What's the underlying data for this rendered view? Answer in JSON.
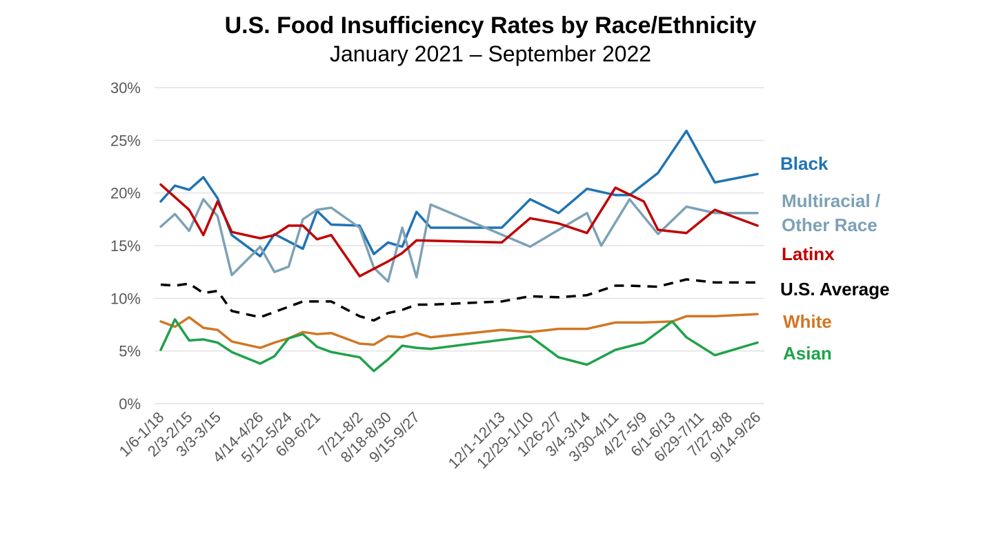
{
  "chart_data": {
    "type": "line",
    "title": "U.S. Food Insufficiency Rates by Race/Ethnicity",
    "subtitle": "January 2021 – September 2022",
    "ylim": [
      0,
      30
    ],
    "yticks": [
      0,
      5,
      10,
      15,
      20,
      25,
      30
    ],
    "ytick_labels": [
      "0%",
      "5%",
      "10%",
      "15%",
      "20%",
      "25%",
      "30%"
    ],
    "grid": true,
    "x_tick_labels": [
      "1/6-1/18",
      "2/3-2/15",
      "3/3-3/15",
      "4/14-4/26",
      "5/12-5/24",
      "6/9-6/21",
      "7/21-8/2",
      "8/18-8/30",
      "9/15-9/27",
      "12/1-12/13",
      "12/29-1/10",
      "1/26-2/7",
      "3/4-3/14",
      "3/30-4/11",
      "4/27-5/9",
      "6/1-6/13",
      "6/29-7/11",
      "7/27-8/8",
      "9/14-9/26"
    ],
    "legend_placement": "right",
    "series": [
      {
        "name": "Black",
        "color": "#1f73b4",
        "dashed": false,
        "points": [
          [
            0,
            19.2
          ],
          [
            1,
            20.7
          ],
          [
            2,
            20.3
          ],
          [
            3,
            21.5
          ],
          [
            4,
            19.5
          ],
          [
            5,
            16.0
          ],
          [
            7,
            14.0
          ],
          [
            8,
            16.1
          ],
          [
            10,
            14.7
          ],
          [
            11,
            18.3
          ],
          [
            12,
            17.0
          ],
          [
            14,
            16.9
          ],
          [
            15,
            14.2
          ],
          [
            16,
            15.3
          ],
          [
            17,
            14.9
          ],
          [
            18,
            18.2
          ],
          [
            19,
            16.7
          ],
          [
            24,
            16.7
          ],
          [
            26,
            19.4
          ],
          [
            28,
            18.1
          ],
          [
            30,
            20.4
          ],
          [
            32,
            19.8
          ],
          [
            33,
            19.8
          ],
          [
            35,
            21.9
          ],
          [
            37,
            25.9
          ],
          [
            39,
            21.0
          ],
          [
            42,
            21.8
          ]
        ]
      },
      {
        "name": "Multiracial / Other Race",
        "color": "#7da1b6",
        "dashed": false,
        "points": [
          [
            0,
            16.8
          ],
          [
            1,
            18.0
          ],
          [
            2,
            16.4
          ],
          [
            3,
            19.4
          ],
          [
            4,
            17.8
          ],
          [
            5,
            12.2
          ],
          [
            7,
            14.9
          ],
          [
            8,
            12.5
          ],
          [
            9,
            13.0
          ],
          [
            10,
            17.5
          ],
          [
            11,
            18.4
          ],
          [
            12,
            18.6
          ],
          [
            14,
            16.7
          ],
          [
            15,
            12.9
          ],
          [
            16,
            11.6
          ],
          [
            17,
            16.7
          ],
          [
            18,
            12.0
          ],
          [
            19,
            18.9
          ],
          [
            26,
            14.9
          ],
          [
            30,
            18.1
          ],
          [
            31,
            15.0
          ],
          [
            33,
            19.4
          ],
          [
            35,
            16.1
          ],
          [
            37,
            18.7
          ],
          [
            39,
            18.1
          ],
          [
            42,
            18.1
          ]
        ]
      },
      {
        "name": "Latinx",
        "color": "#c00000",
        "dashed": false,
        "points": [
          [
            0,
            20.8
          ],
          [
            1,
            19.6
          ],
          [
            2,
            18.4
          ],
          [
            3,
            16.0
          ],
          [
            4,
            19.2
          ],
          [
            5,
            16.3
          ],
          [
            7,
            15.7
          ],
          [
            8,
            16.0
          ],
          [
            9,
            16.9
          ],
          [
            10,
            16.9
          ],
          [
            11,
            15.6
          ],
          [
            12,
            16.0
          ],
          [
            14,
            12.1
          ],
          [
            15,
            12.8
          ],
          [
            16,
            13.5
          ],
          [
            17,
            14.3
          ],
          [
            18,
            15.5
          ],
          [
            24,
            15.3
          ],
          [
            26,
            17.6
          ],
          [
            28,
            17.1
          ],
          [
            30,
            16.2
          ],
          [
            32,
            20.5
          ],
          [
            34,
            19.2
          ],
          [
            35,
            16.5
          ],
          [
            37,
            16.2
          ],
          [
            39,
            18.4
          ],
          [
            42,
            16.9
          ]
        ]
      },
      {
        "name": "U.S. Average",
        "color": "#000000",
        "dashed": true,
        "points": [
          [
            0,
            11.3
          ],
          [
            1,
            11.2
          ],
          [
            2,
            11.4
          ],
          [
            3,
            10.5
          ],
          [
            4,
            10.7
          ],
          [
            5,
            8.8
          ],
          [
            7,
            8.2
          ],
          [
            8,
            8.7
          ],
          [
            10,
            9.7
          ],
          [
            11,
            9.7
          ],
          [
            12,
            9.7
          ],
          [
            14,
            8.3
          ],
          [
            15,
            7.9
          ],
          [
            16,
            8.6
          ],
          [
            17,
            8.9
          ],
          [
            18,
            9.4
          ],
          [
            19,
            9.4
          ],
          [
            24,
            9.7
          ],
          [
            26,
            10.2
          ],
          [
            28,
            10.1
          ],
          [
            30,
            10.3
          ],
          [
            32,
            11.2
          ],
          [
            33,
            11.2
          ],
          [
            35,
            11.1
          ],
          [
            37,
            11.8
          ],
          [
            39,
            11.5
          ],
          [
            42,
            11.5
          ]
        ]
      },
      {
        "name": "White",
        "color": "#d27623",
        "dashed": false,
        "points": [
          [
            0,
            7.8
          ],
          [
            1,
            7.3
          ],
          [
            2,
            8.2
          ],
          [
            3,
            7.2
          ],
          [
            4,
            7.0
          ],
          [
            5,
            5.9
          ],
          [
            7,
            5.3
          ],
          [
            8,
            5.8
          ],
          [
            9,
            6.2
          ],
          [
            10,
            6.8
          ],
          [
            11,
            6.6
          ],
          [
            12,
            6.7
          ],
          [
            14,
            5.7
          ],
          [
            15,
            5.6
          ],
          [
            16,
            6.4
          ],
          [
            17,
            6.3
          ],
          [
            18,
            6.7
          ],
          [
            19,
            6.3
          ],
          [
            24,
            7.0
          ],
          [
            26,
            6.8
          ],
          [
            28,
            7.1
          ],
          [
            30,
            7.1
          ],
          [
            32,
            7.7
          ],
          [
            34,
            7.7
          ],
          [
            36,
            7.8
          ],
          [
            37,
            8.3
          ],
          [
            39,
            8.3
          ],
          [
            42,
            8.5
          ]
        ]
      },
      {
        "name": "Asian",
        "color": "#1ea24a",
        "dashed": false,
        "points": [
          [
            0,
            5.1
          ],
          [
            1,
            8.0
          ],
          [
            2,
            6.0
          ],
          [
            3,
            6.1
          ],
          [
            4,
            5.8
          ],
          [
            5,
            4.9
          ],
          [
            7,
            3.8
          ],
          [
            8,
            4.5
          ],
          [
            9,
            6.2
          ],
          [
            10,
            6.6
          ],
          [
            11,
            5.4
          ],
          [
            12,
            4.9
          ],
          [
            14,
            4.4
          ],
          [
            15,
            3.1
          ],
          [
            16,
            4.2
          ],
          [
            17,
            5.5
          ],
          [
            18,
            5.3
          ],
          [
            19,
            5.2
          ],
          [
            26,
            6.4
          ],
          [
            28,
            4.4
          ],
          [
            30,
            3.7
          ],
          [
            32,
            5.1
          ],
          [
            34,
            5.8
          ],
          [
            36,
            7.8
          ],
          [
            37,
            6.3
          ],
          [
            39,
            4.6
          ],
          [
            42,
            5.8
          ]
        ]
      }
    ]
  }
}
